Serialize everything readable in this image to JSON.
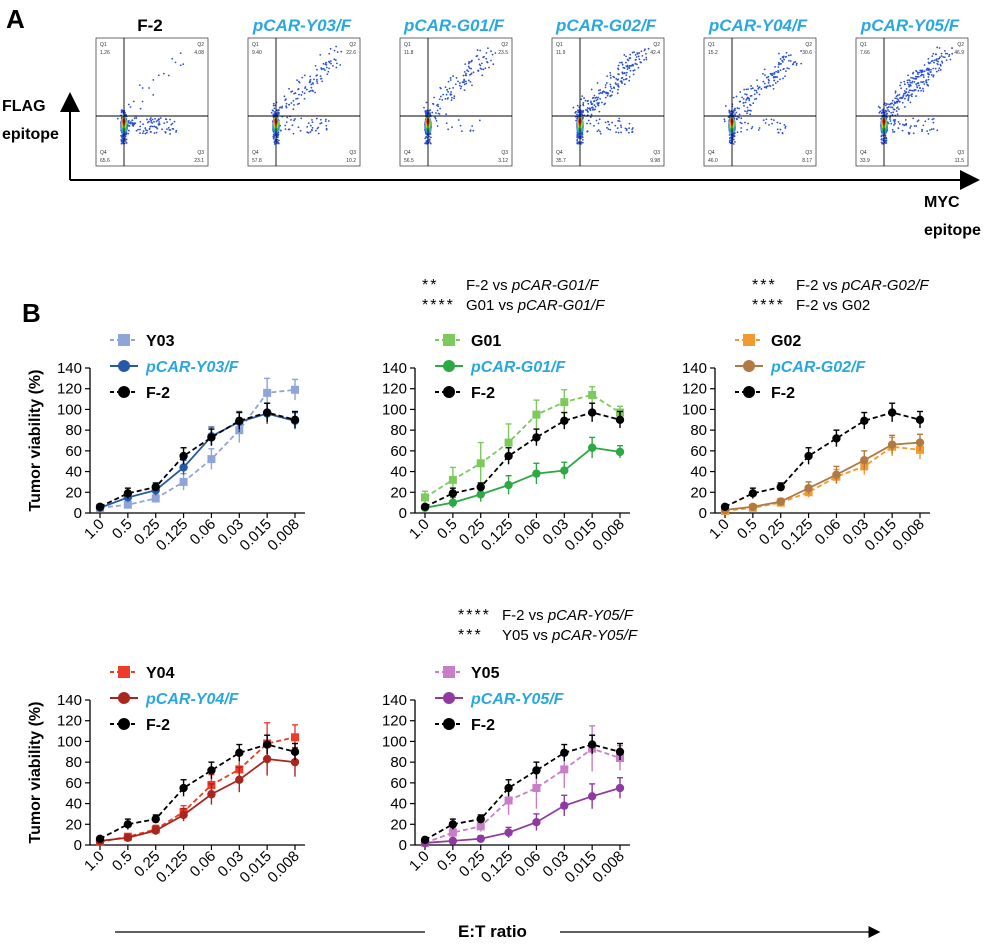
{
  "panel_a": {
    "label": "A",
    "y_axis_line1": "FLAG",
    "y_axis_line2": "epitope",
    "x_axis_line1": "MYC",
    "x_axis_line2": "epitope",
    "plots": [
      {
        "title": "F-2",
        "q1": "1.26",
        "q2": "4.08",
        "q3": "23.1",
        "q4": "65.6"
      },
      {
        "title": "pCAR-Y03/F",
        "q1": "9.40",
        "q2": "22.6",
        "q3": "10.2",
        "q4": "57.8"
      },
      {
        "title": "pCAR-G01/F",
        "q1": "11.8",
        "q2": "23.5",
        "q3": "3.12",
        "q4": "56.5"
      },
      {
        "title": "pCAR-G02/F",
        "q1": "11.9",
        "q2": "42.4",
        "q3": "9.98",
        "q4": "35.7"
      },
      {
        "title": "pCAR-Y04/F",
        "q1": "15.2",
        "q2": "30.6",
        "q3": "8.17",
        "q4": "46.0"
      },
      {
        "title": "pCAR-Y05/F",
        "q1": "7.66",
        "q2": "46.9",
        "q3": "11.5",
        "q4": "33.9"
      }
    ]
  },
  "panel_b": {
    "label": "B",
    "xlabel": "E:T ratio",
    "stats_g01": [
      {
        "stars": "**",
        "text": "F-2 vs ",
        "italic": "pCAR-G01/F"
      },
      {
        "stars": "****",
        "text": "G01 vs ",
        "italic": "pCAR-G01/F"
      }
    ],
    "stats_g02": [
      {
        "stars": "***",
        "text": "F-2 vs ",
        "italic": "pCAR-G02/F"
      },
      {
        "stars": "****",
        "text": "F-2 vs G02",
        "italic": ""
      }
    ],
    "stats_y05": [
      {
        "stars": "****",
        "text": "F-2 vs ",
        "italic": "pCAR-Y05/F"
      },
      {
        "stars": "***",
        "text": "Y05 vs ",
        "italic": "pCAR-Y05/F"
      }
    ]
  },
  "chart_data": [
    {
      "type": "line",
      "id": "y03",
      "ylabel": "Tumor viability (%)",
      "xlabel": "E:T ratio",
      "ylim": [
        0,
        140
      ],
      "yticks": [
        0,
        20,
        40,
        60,
        80,
        100,
        120,
        140
      ],
      "categories": [
        "1.0",
        "0.5",
        "0.25",
        "0.125",
        "0.06",
        "0.03",
        "0.015",
        "0.008"
      ],
      "series": [
        {
          "name": "Y03",
          "italic": false,
          "color": "#8fa4d8",
          "marker": "square",
          "dash": true,
          "values": [
            5,
            8,
            14,
            30,
            52,
            80,
            116,
            119
          ],
          "err": [
            2,
            3,
            4,
            8,
            10,
            12,
            14,
            10
          ]
        },
        {
          "name": "pCAR-Y03/F",
          "italic": true,
          "color": "#2458a8",
          "marker": "circle",
          "dash": false,
          "values": [
            5,
            15,
            22,
            44,
            74,
            88,
            96,
            89
          ],
          "err": [
            2,
            4,
            5,
            7,
            9,
            10,
            10,
            8
          ]
        },
        {
          "name": "F-2",
          "italic": false,
          "color": "#000000",
          "marker": "circle",
          "dash": true,
          "values": [
            6,
            19,
            25,
            55,
            73,
            89,
            97,
            90
          ],
          "err": [
            2,
            5,
            4,
            8,
            8,
            8,
            9,
            8
          ]
        }
      ]
    },
    {
      "type": "line",
      "id": "g01",
      "ylabel": "",
      "xlabel": "E:T ratio",
      "ylim": [
        0,
        140
      ],
      "yticks": [
        0,
        20,
        40,
        60,
        80,
        100,
        120,
        140
      ],
      "categories": [
        "1.0",
        "0.5",
        "0.25",
        "0.125",
        "0.06",
        "0.03",
        "0.015",
        "0.008"
      ],
      "series": [
        {
          "name": "G01",
          "italic": false,
          "color": "#7dc95e",
          "marker": "square",
          "dash": true,
          "values": [
            15,
            32,
            48,
            68,
            95,
            107,
            114,
            97
          ],
          "err": [
            6,
            12,
            20,
            18,
            14,
            12,
            8,
            6
          ]
        },
        {
          "name": "pCAR-G01/F",
          "italic": true,
          "color": "#2ea844",
          "marker": "circle",
          "dash": false,
          "values": [
            5,
            10,
            18,
            27,
            38,
            41,
            63,
            59
          ],
          "err": [
            2,
            5,
            7,
            9,
            10,
            8,
            10,
            6
          ]
        },
        {
          "name": "F-2",
          "italic": false,
          "color": "#000000",
          "marker": "circle",
          "dash": true,
          "values": [
            6,
            19,
            25,
            55,
            73,
            89,
            97,
            90
          ],
          "err": [
            2,
            5,
            4,
            8,
            8,
            8,
            9,
            8
          ]
        }
      ]
    },
    {
      "type": "line",
      "id": "g02",
      "ylabel": "",
      "xlabel": "E:T ratio",
      "ylim": [
        0,
        140
      ],
      "yticks": [
        0,
        20,
        40,
        60,
        80,
        100,
        120,
        140
      ],
      "categories": [
        "1.0",
        "0.5",
        "0.25",
        "0.125",
        "0.06",
        "0.03",
        "0.015",
        "0.008"
      ],
      "series": [
        {
          "name": "G02",
          "italic": false,
          "color": "#f39a2e",
          "marker": "square",
          "dash": true,
          "values": [
            2,
            5,
            10,
            20,
            35,
            45,
            64,
            61
          ],
          "err": [
            1,
            2,
            3,
            5,
            7,
            8,
            9,
            9
          ]
        },
        {
          "name": "pCAR-G02/F",
          "italic": true,
          "color": "#b07a44",
          "marker": "circle",
          "dash": false,
          "values": [
            3,
            6,
            11,
            24,
            37,
            51,
            66,
            68
          ],
          "err": [
            1,
            2,
            3,
            6,
            8,
            9,
            9,
            8
          ]
        },
        {
          "name": "F-2",
          "italic": false,
          "color": "#000000",
          "marker": "circle",
          "dash": true,
          "values": [
            6,
            19,
            25,
            55,
            72,
            89,
            97,
            90
          ],
          "err": [
            2,
            5,
            4,
            8,
            8,
            8,
            9,
            8
          ]
        }
      ]
    },
    {
      "type": "line",
      "id": "y04",
      "ylabel": "Tumor viability (%)",
      "xlabel": "E:T ratio",
      "ylim": [
        0,
        140
      ],
      "yticks": [
        0,
        20,
        40,
        60,
        80,
        100,
        120,
        140
      ],
      "categories": [
        "1.0",
        "0.5",
        "0.25",
        "0.125",
        "0.06",
        "0.03",
        "0.015",
        "0.008"
      ],
      "series": [
        {
          "name": "Y04",
          "italic": false,
          "color": "#ee3b2a",
          "marker": "square",
          "dash": true,
          "values": [
            3,
            8,
            15,
            32,
            58,
            73,
            98,
            104
          ],
          "err": [
            1,
            3,
            4,
            6,
            10,
            14,
            20,
            12
          ]
        },
        {
          "name": "pCAR-Y04/F",
          "italic": true,
          "color": "#a8261e",
          "marker": "circle",
          "dash": false,
          "values": [
            4,
            7,
            14,
            29,
            49,
            63,
            83,
            80
          ],
          "err": [
            1,
            3,
            4,
            6,
            10,
            12,
            16,
            14
          ]
        },
        {
          "name": "F-2",
          "italic": false,
          "color": "#000000",
          "marker": "circle",
          "dash": true,
          "values": [
            6,
            20,
            25,
            55,
            72,
            89,
            97,
            90
          ],
          "err": [
            2,
            5,
            4,
            8,
            8,
            8,
            9,
            8
          ]
        }
      ]
    },
    {
      "type": "line",
      "id": "y05",
      "ylabel": "",
      "xlabel": "E:T ratio",
      "ylim": [
        0,
        140
      ],
      "yticks": [
        0,
        20,
        40,
        60,
        80,
        100,
        120,
        140
      ],
      "categories": [
        "1.0",
        "0.5",
        "0.25",
        "0.125",
        "0.06",
        "0.03",
        "0.015",
        "0.008"
      ],
      "series": [
        {
          "name": "Y05",
          "italic": false,
          "color": "#c77dc7",
          "marker": "square",
          "dash": true,
          "values": [
            2,
            12,
            18,
            43,
            55,
            73,
            93,
            84
          ],
          "err": [
            1,
            4,
            5,
            14,
            20,
            18,
            22,
            12
          ]
        },
        {
          "name": "pCAR-Y05/F",
          "italic": true,
          "color": "#8e3aa0",
          "marker": "circle",
          "dash": false,
          "values": [
            2,
            4,
            6,
            12,
            22,
            38,
            47,
            55
          ],
          "err": [
            1,
            2,
            3,
            5,
            8,
            10,
            12,
            10
          ]
        },
        {
          "name": "F-2",
          "italic": false,
          "color": "#000000",
          "marker": "circle",
          "dash": true,
          "values": [
            5,
            20,
            25,
            55,
            72,
            89,
            97,
            90
          ],
          "err": [
            2,
            5,
            4,
            8,
            8,
            8,
            9,
            8
          ]
        }
      ]
    }
  ]
}
